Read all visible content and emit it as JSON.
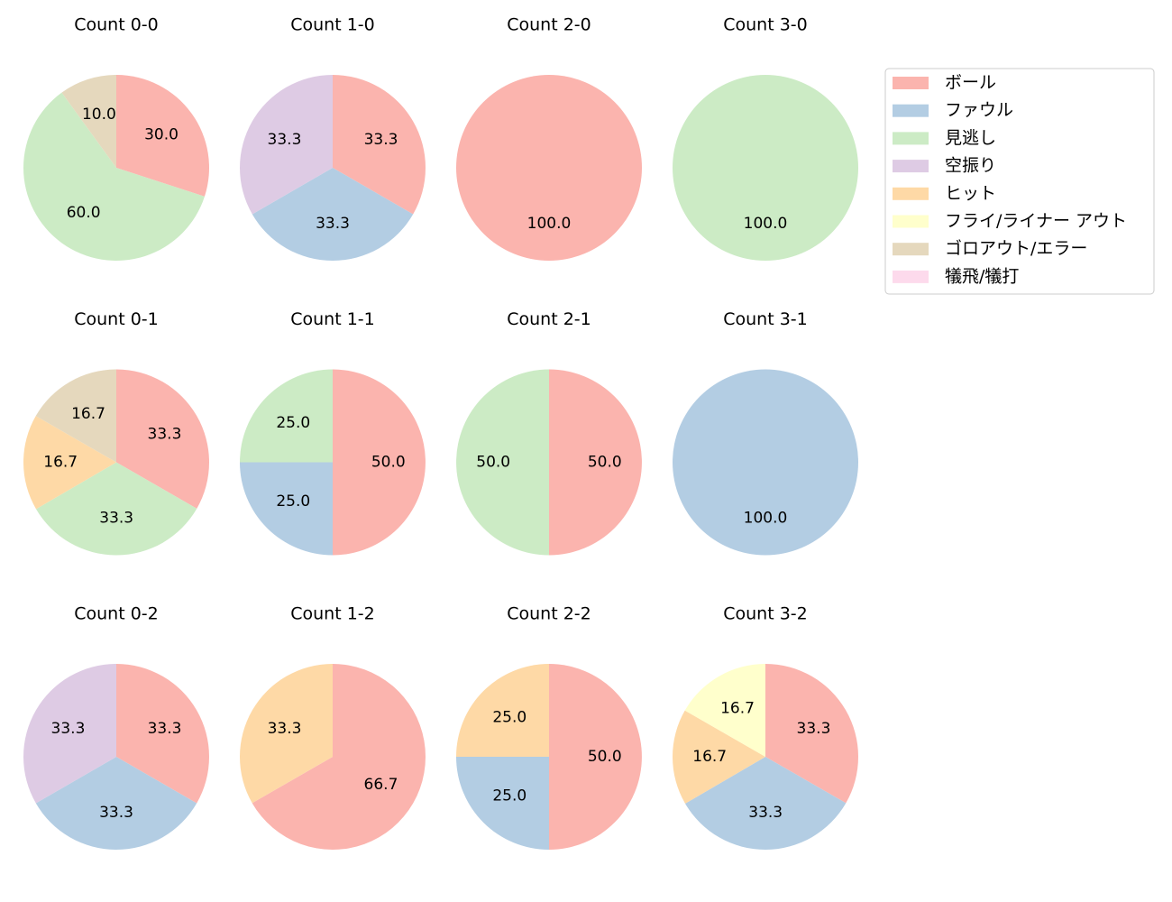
{
  "legend": {
    "names": [
      "ボール",
      "ファウル",
      "見逃し",
      "空振り",
      "ヒット",
      "フライ/ライナー アウト",
      "ゴロアウト/エラー",
      "犠飛/犠打"
    ],
    "colors": [
      "#fbb4ae",
      "#b3cde3",
      "#ccebc5",
      "#decbe4",
      "#fed9a6",
      "#ffffcc",
      "#e5d8bd",
      "#fddaec"
    ]
  },
  "chart_data": [
    {
      "type": "pie",
      "title": "Count 0-0",
      "categories": [
        "ボール",
        "見逃し",
        "ゴロアウト/エラー"
      ],
      "values": [
        30,
        60,
        10
      ],
      "value_labels": [
        "30.0",
        "60.0",
        "10.0"
      ]
    },
    {
      "type": "pie",
      "title": "Count 1-0",
      "categories": [
        "ボール",
        "ファウル",
        "空振り"
      ],
      "values": [
        33.3,
        33.3,
        33.3
      ],
      "value_labels": [
        "33.3",
        "33.3",
        "33.3"
      ]
    },
    {
      "type": "pie",
      "title": "Count 2-0",
      "categories": [
        "ボール"
      ],
      "values": [
        100
      ],
      "value_labels": [
        "100.0"
      ]
    },
    {
      "type": "pie",
      "title": "Count 3-0",
      "categories": [
        "見逃し"
      ],
      "values": [
        100
      ],
      "value_labels": [
        "100.0"
      ]
    },
    {
      "type": "pie",
      "title": "Count 0-1",
      "categories": [
        "ボール",
        "見逃し",
        "ヒット",
        "ゴロアウト/エラー"
      ],
      "values": [
        33.3,
        33.3,
        16.7,
        16.7
      ],
      "value_labels": [
        "33.3",
        "33.3",
        "16.7",
        "16.7"
      ]
    },
    {
      "type": "pie",
      "title": "Count 1-1",
      "categories": [
        "ボール",
        "ファウル",
        "見逃し"
      ],
      "values": [
        50,
        25,
        25
      ],
      "value_labels": [
        "50.0",
        "25.0",
        "25.0"
      ]
    },
    {
      "type": "pie",
      "title": "Count 2-1",
      "categories": [
        "ボール",
        "見逃し"
      ],
      "values": [
        50,
        50
      ],
      "value_labels": [
        "50.0",
        "50.0"
      ]
    },
    {
      "type": "pie",
      "title": "Count 3-1",
      "categories": [
        "ファウル"
      ],
      "values": [
        100
      ],
      "value_labels": [
        "100.0"
      ]
    },
    {
      "type": "pie",
      "title": "Count 0-2",
      "categories": [
        "ボール",
        "ファウル",
        "空振り"
      ],
      "values": [
        33.3,
        33.3,
        33.3
      ],
      "value_labels": [
        "33.3",
        "33.3",
        "33.3"
      ]
    },
    {
      "type": "pie",
      "title": "Count 1-2",
      "categories": [
        "ボール",
        "ヒット"
      ],
      "values": [
        66.7,
        33.3
      ],
      "value_labels": [
        "66.7",
        "33.3"
      ]
    },
    {
      "type": "pie",
      "title": "Count 2-2",
      "categories": [
        "ボール",
        "ファウル",
        "ヒット"
      ],
      "values": [
        50,
        25,
        25
      ],
      "value_labels": [
        "50.0",
        "25.0",
        "25.0"
      ]
    },
    {
      "type": "pie",
      "title": "Count 3-2",
      "categories": [
        "ボール",
        "ファウル",
        "ヒット",
        "フライ/ライナー アウト"
      ],
      "values": [
        33.3,
        33.3,
        16.7,
        16.7
      ],
      "value_labels": [
        "33.3",
        "33.3",
        "16.7",
        "16.7"
      ]
    }
  ]
}
